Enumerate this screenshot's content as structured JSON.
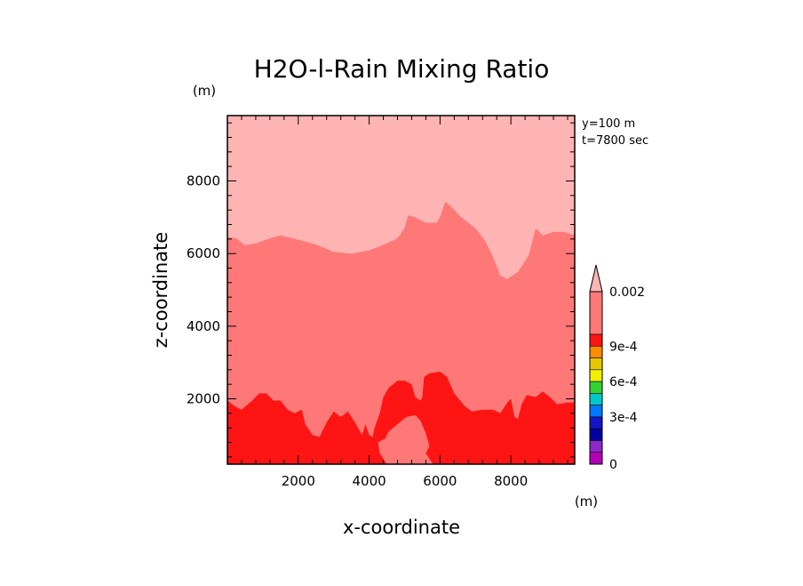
{
  "chart_data": {
    "type": "contour",
    "title": "H2O-l-Rain Mixing Ratio",
    "xlabel": "x-coordinate",
    "ylabel": "z-coordinate",
    "x_unit": "(m)",
    "y_unit": "(m)",
    "annotations": [
      "y=100 m",
      "t=7800 sec"
    ],
    "xlim": [
      0,
      9800
    ],
    "ylim": [
      200,
      9800
    ],
    "x_ticks": [
      2000,
      4000,
      6000,
      8000
    ],
    "y_ticks": [
      2000,
      4000,
      6000,
      8000
    ],
    "x_tick_labels": [
      "2000",
      "4000",
      "6000",
      "8000"
    ],
    "y_tick_labels": [
      "2000",
      "4000",
      "6000",
      "8000"
    ],
    "grid": false,
    "colors": {
      "top_band": "#ffb4b4",
      "mid_band": "#ff7878",
      "bottom_band": "#ff1414"
    },
    "regions": [
      {
        "level": "top",
        "boundary_upper": [
          [
            0,
            6460
          ],
          [
            250,
            6420
          ],
          [
            500,
            6230
          ],
          [
            800,
            6280
          ],
          [
            1200,
            6420
          ],
          [
            1500,
            6500
          ],
          [
            2000,
            6380
          ],
          [
            2500,
            6250
          ],
          [
            3000,
            6050
          ],
          [
            3500,
            6000
          ],
          [
            4000,
            6090
          ],
          [
            4400,
            6240
          ],
          [
            4800,
            6420
          ],
          [
            5000,
            6700
          ],
          [
            5100,
            7050
          ],
          [
            5300,
            7000
          ],
          [
            5600,
            6850
          ],
          [
            5900,
            6850
          ],
          [
            6000,
            7000
          ],
          [
            6150,
            7430
          ],
          [
            6300,
            7300
          ],
          [
            6600,
            7000
          ],
          [
            7000,
            6700
          ],
          [
            7300,
            6300
          ],
          [
            7500,
            5900
          ],
          [
            7700,
            5400
          ],
          [
            7900,
            5300
          ],
          [
            8200,
            5500
          ],
          [
            8500,
            5950
          ],
          [
            8700,
            6700
          ],
          [
            8900,
            6500
          ],
          [
            9200,
            6600
          ],
          [
            9500,
            6600
          ],
          [
            9800,
            6500
          ]
        ]
      },
      {
        "level": "bottom",
        "boundary": [
          [
            0,
            1950
          ],
          [
            200,
            1800
          ],
          [
            400,
            1700
          ],
          [
            700,
            1950
          ],
          [
            900,
            2150
          ],
          [
            1100,
            2150
          ],
          [
            1300,
            1950
          ],
          [
            1500,
            1950
          ],
          [
            1700,
            1700
          ],
          [
            1900,
            1600
          ],
          [
            2100,
            1700
          ],
          [
            2200,
            1300
          ],
          [
            2400,
            1000
          ],
          [
            2600,
            950
          ],
          [
            2800,
            1350
          ],
          [
            3000,
            1650
          ],
          [
            3200,
            1500
          ],
          [
            3400,
            1650
          ],
          [
            3600,
            1350
          ],
          [
            3800,
            1000
          ],
          [
            3900,
            1300
          ],
          [
            4000,
            1000
          ],
          [
            4100,
            950
          ],
          [
            4150,
            1200
          ],
          [
            4300,
            1600
          ],
          [
            4400,
            2050
          ],
          [
            4550,
            2300
          ],
          [
            4800,
            2500
          ],
          [
            5000,
            2500
          ],
          [
            5200,
            2400
          ],
          [
            5300,
            2050
          ],
          [
            5450,
            1950
          ],
          [
            5500,
            2050
          ],
          [
            5550,
            2600
          ],
          [
            5700,
            2700
          ],
          [
            6000,
            2750
          ],
          [
            6200,
            2600
          ],
          [
            6400,
            2150
          ],
          [
            6700,
            1800
          ],
          [
            6900,
            1650
          ],
          [
            7200,
            1700
          ],
          [
            7500,
            1700
          ],
          [
            7700,
            1600
          ],
          [
            7900,
            1900
          ],
          [
            8000,
            2000
          ],
          [
            8100,
            1500
          ],
          [
            8200,
            1450
          ],
          [
            8300,
            1850
          ],
          [
            8450,
            2100
          ],
          [
            8700,
            2050
          ],
          [
            8900,
            2200
          ],
          [
            9100,
            2050
          ],
          [
            9300,
            1850
          ],
          [
            9600,
            1900
          ],
          [
            9800,
            1900
          ],
          [
            9800,
            200
          ],
          [
            0,
            200
          ]
        ]
      },
      {
        "level": "mid",
        "hole": [
          [
            4300,
            500
          ],
          [
            4250,
            800
          ],
          [
            4450,
            900
          ],
          [
            4550,
            1100
          ],
          [
            4800,
            1300
          ],
          [
            5050,
            1500
          ],
          [
            5300,
            1550
          ],
          [
            5450,
            1400
          ],
          [
            5600,
            1050
          ],
          [
            5700,
            700
          ],
          [
            5600,
            500
          ],
          [
            5800,
            200
          ],
          [
            4500,
            200
          ]
        ]
      }
    ],
    "colorbar": {
      "labels": [
        "0.002",
        "9e-4",
        "6e-4",
        "3e-4",
        "0"
      ],
      "segments": [
        "#ff7878",
        "#ff1414",
        "#ff8c00",
        "#e6c800",
        "#f0f000",
        "#32d232",
        "#00c8c8",
        "#0078ff",
        "#1414c8",
        "#0000a0",
        "#8c28c8",
        "#b400b4"
      ],
      "top_triangle_color": "#ffb4b4"
    }
  }
}
